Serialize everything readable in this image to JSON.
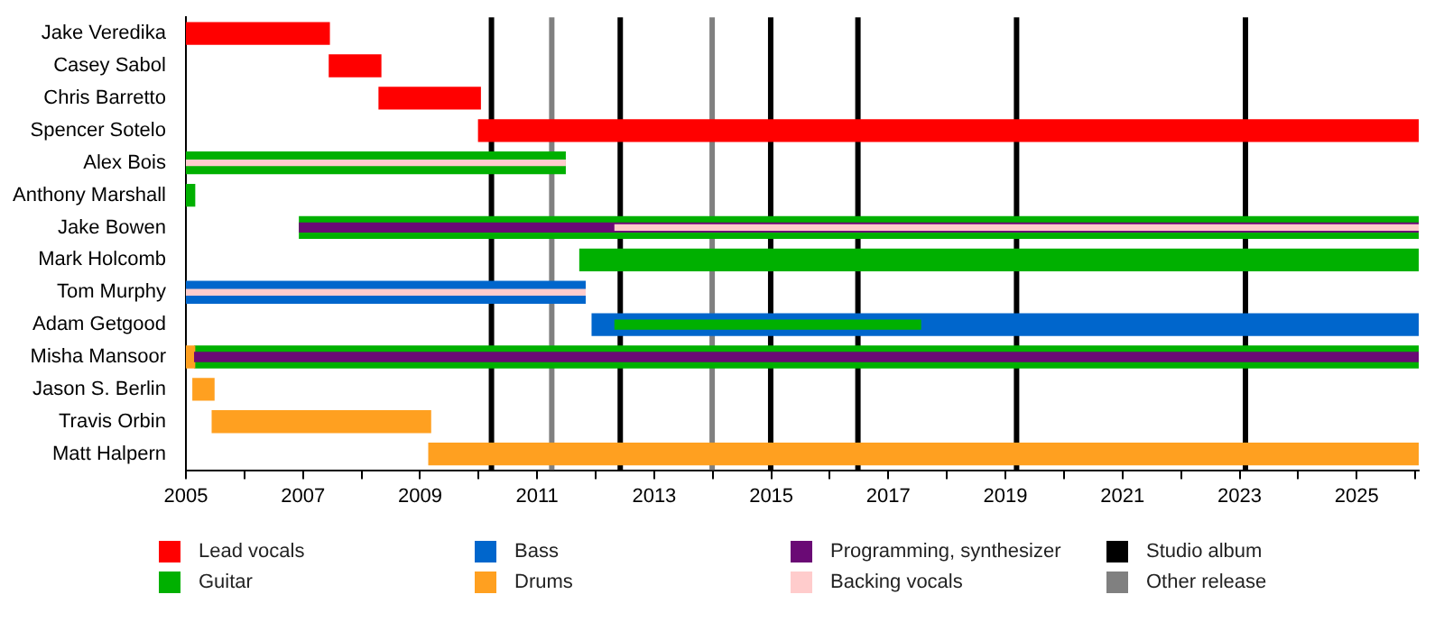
{
  "chart_data": {
    "type": "bar",
    "orientation": "horizontal",
    "categories": [
      "Jake Veredika",
      "Casey Sabol",
      "Chris Barretto",
      "Spencer Sotelo",
      "Alex Bois",
      "Anthony Marshall",
      "Jake Bowen",
      "Mark Holcomb",
      "Tom Murphy",
      "Adam Getgood",
      "Misha Mansoor",
      "Jason S. Berlin",
      "Travis Orbin",
      "Matt Halpern"
    ],
    "series": [
      {
        "name": "Lead vocals",
        "color": "#ff0000",
        "base": [
          2005,
          2007.45,
          2008.3,
          2010.0,
          null,
          null,
          null,
          null,
          null,
          null,
          null,
          null,
          null,
          null
        ],
        "values": [
          2.45,
          0.88,
          1.73,
          16.06,
          null,
          null,
          null,
          null,
          null,
          null,
          null,
          null,
          null,
          null
        ]
      },
      {
        "name": "Guitar",
        "color": "#00b000",
        "base": [
          null,
          null,
          null,
          null,
          2005,
          2005,
          2006.94,
          2011.73,
          null,
          null,
          2005.15,
          null,
          null,
          null
        ],
        "values": [
          null,
          null,
          null,
          null,
          6.48,
          0.15,
          19.12,
          14.33,
          null,
          null,
          20.91,
          null,
          null,
          null
        ]
      },
      {
        "name": "Bass",
        "color": "#0066cc",
        "base": [
          null,
          null,
          null,
          null,
          null,
          null,
          null,
          null,
          2005,
          2011.94,
          null,
          null,
          null,
          null
        ],
        "values": [
          null,
          null,
          null,
          null,
          null,
          null,
          null,
          null,
          6.82,
          14.12,
          null,
          null,
          null,
          null
        ]
      },
      {
        "name": "Drums",
        "color": "#ffa020",
        "base": [
          null,
          null,
          null,
          null,
          null,
          null,
          null,
          null,
          null,
          null,
          2005,
          2005.12,
          2005.45,
          2009.15
        ],
        "values": [
          null,
          null,
          null,
          null,
          null,
          null,
          null,
          null,
          null,
          null,
          0.15,
          0.36,
          3.73,
          16.91
        ]
      },
      {
        "color": "#00b000",
        "base": [
          null,
          null,
          null,
          null,
          null,
          null,
          null,
          null,
          null,
          2012.33,
          null,
          null,
          null,
          null
        ],
        "values": [
          null,
          null,
          null,
          null,
          null,
          null,
          null,
          null,
          null,
          5.22,
          null,
          null,
          null,
          null
        ]
      },
      {
        "name": "Programming, synthesizer",
        "color": "#6a0a75",
        "base": [
          null,
          null,
          null,
          null,
          null,
          null,
          2006.94,
          null,
          null,
          null,
          2005.15,
          null,
          null,
          null
        ],
        "values": [
          null,
          null,
          null,
          null,
          null,
          null,
          19.12,
          null,
          null,
          null,
          20.91,
          null,
          null,
          null
        ]
      },
      {
        "name": "Backing vocals",
        "color": "#ffcccc",
        "base": [
          null,
          null,
          null,
          null,
          2005,
          null,
          2012.33,
          null,
          2005,
          null,
          null,
          null,
          null,
          null
        ],
        "values": [
          null,
          null,
          null,
          null,
          6.48,
          null,
          13.73,
          null,
          6.82,
          null,
          null,
          null,
          null,
          null
        ]
      }
    ],
    "xlim": [
      2005,
      2026.06
    ],
    "xticks": [
      2005,
      {
        "value": 2006,
        "label": null
      },
      2007,
      {
        "value": 2008,
        "label": null
      },
      2009,
      {
        "value": 2010,
        "label": null
      },
      2011,
      {
        "value": 2012,
        "label": null
      },
      2013,
      {
        "value": 2014,
        "label": null
      },
      2015,
      {
        "value": 2016,
        "label": null
      },
      2017,
      {
        "value": 2018,
        "label": null
      },
      2019,
      {
        "value": 2020,
        "label": null
      },
      2021,
      {
        "value": 2022,
        "label": null
      },
      2023,
      {
        "value": 2024,
        "label": null
      },
      2025,
      {
        "value": 2026,
        "label": null
      }
    ],
    "ref_lines": [
      {
        "axis": "x",
        "value": 2010.22,
        "label": "Studio album",
        "color": "#000000"
      },
      {
        "axis": "x",
        "value": 2011.25,
        "label": "Other release",
        "color": "#808080"
      },
      {
        "axis": "x",
        "value": 2012.42,
        "color": "#000000"
      },
      {
        "axis": "x",
        "value": 2013.99,
        "color": "#808080"
      },
      {
        "axis": "x",
        "value": 2014.99,
        "color": "#000000"
      },
      {
        "axis": "x",
        "value": 2016.48,
        "color": "#000000"
      },
      {
        "axis": "x",
        "value": 2019.19,
        "color": "#000000"
      },
      {
        "axis": "x",
        "value": 2023.1,
        "color": "#000000"
      }
    ],
    "grid": false,
    "legend": "bottom"
  }
}
